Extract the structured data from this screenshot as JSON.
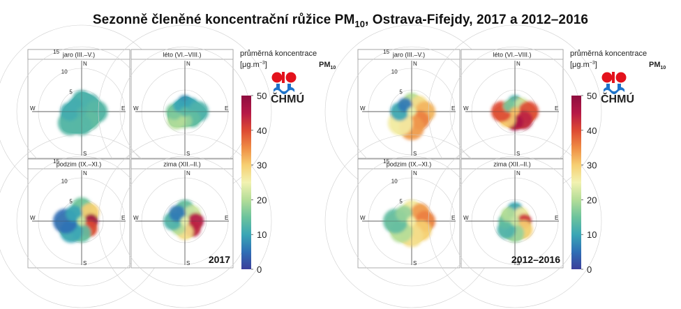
{
  "title": {
    "prefix": "Sezonně členěné koncentrační růžice PM",
    "sub": "10",
    "suffix": ", Ostrava-Fifejdy, 2017 a 2012–2016"
  },
  "legend": {
    "line1": "průměrná koncentrace",
    "unit_main": "[μg.m",
    "unit_sup": "−3",
    "unit_close": "]",
    "pm_label": "PM",
    "pm_sub": "10",
    "ticks": [
      "0",
      "10",
      "20",
      "30",
      "40",
      "50"
    ]
  },
  "logo": {
    "text": "ČHMÚ"
  },
  "colors": {
    "scale": [
      "#3b3e9a",
      "#2f6fb5",
      "#3aa6b5",
      "#6cc39c",
      "#b4dd98",
      "#f2f2b1",
      "#f6cf72",
      "#ef8c44",
      "#dd4a33",
      "#b51947",
      "#8e0d3f"
    ]
  },
  "chart_data": [
    {
      "type": "heatmap",
      "period": "2017",
      "panel_label": "2017",
      "scale": {
        "min": 0,
        "max": 50,
        "unit": "μg.m−3"
      },
      "radial_ticks": [
        "5",
        "10",
        "15"
      ],
      "compass": [
        "N",
        "E",
        "S",
        "W"
      ],
      "seasons": [
        {
          "name": "jaro",
          "months": "(III.–V.)",
          "dirs": [
            "N",
            "NE",
            "E",
            "SE",
            "S",
            "SW",
            "W",
            "NW"
          ],
          "extent": [
            4.5,
            4.5,
            5.5,
            4.5,
            5,
            6,
            4.5,
            3.5
          ],
          "value": [
            12,
            12,
            13,
            14,
            13,
            13,
            11,
            11
          ]
        },
        {
          "name": "léto",
          "months": "(VI.–VIII.)",
          "dirs": [
            "N",
            "NE",
            "E",
            "SE",
            "S",
            "SW",
            "W",
            "NW"
          ],
          "extent": [
            3.5,
            3.5,
            5,
            4,
            3.5,
            4.5,
            4,
            3
          ],
          "value": [
            8,
            10,
            12,
            14,
            18,
            20,
            16,
            10
          ]
        },
        {
          "name": "podzim",
          "months": "(IX.–XI.)",
          "dirs": [
            "N",
            "NE",
            "E",
            "SE",
            "S",
            "SW",
            "W",
            "NW"
          ],
          "extent": [
            5,
            4.5,
            3.5,
            4,
            4.5,
            5.5,
            6,
            4
          ],
          "value": [
            15,
            30,
            48,
            40,
            14,
            10,
            5,
            10
          ]
        },
        {
          "name": "zima",
          "months": "(XII.–II.)",
          "dirs": [
            "N",
            "NE",
            "E",
            "SE",
            "S",
            "SW",
            "W",
            "NW"
          ],
          "extent": [
            4.5,
            4,
            4,
            4,
            4,
            3.5,
            4.5,
            4
          ],
          "value": [
            14,
            22,
            45,
            44,
            28,
            20,
            12,
            6
          ]
        }
      ]
    },
    {
      "type": "heatmap",
      "period": "2012–2016",
      "panel_label": "2012–2016",
      "scale": {
        "min": 0,
        "max": 50,
        "unit": "μg.m−3"
      },
      "radial_ticks": [
        "5",
        "10",
        "15"
      ],
      "compass": [
        "N",
        "E",
        "S",
        "W"
      ],
      "seasons": [
        {
          "name": "jaro",
          "months": "(III.–V.)",
          "dirs": [
            "N",
            "NE",
            "E",
            "SE",
            "S",
            "SW",
            "W",
            "NW"
          ],
          "extent": [
            4,
            4,
            5,
            4.5,
            6,
            6,
            4.5,
            3.5
          ],
          "value": [
            20,
            28,
            32,
            36,
            34,
            26,
            10,
            6
          ]
        },
        {
          "name": "léto",
          "months": "(VI.–VIII.)",
          "dirs": [
            "N",
            "NE",
            "E",
            "SE",
            "S",
            "SW",
            "W",
            "NW"
          ],
          "extent": [
            3.5,
            3.5,
            5,
            4.5,
            4,
            4,
            5,
            3
          ],
          "value": [
            12,
            22,
            40,
            44,
            46,
            30,
            40,
            16
          ]
        },
        {
          "name": "podzim",
          "months": "(IX.–XI.)",
          "dirs": [
            "N",
            "NE",
            "E",
            "SE",
            "S",
            "SW",
            "W",
            "NW"
          ],
          "extent": [
            4.5,
            4.5,
            5,
            5,
            5.5,
            5.5,
            6,
            4
          ],
          "value": [
            26,
            34,
            36,
            30,
            28,
            20,
            14,
            18
          ]
        },
        {
          "name": "zima",
          "months": "(XII.–II.)",
          "dirs": [
            "N",
            "NE",
            "E",
            "SE",
            "S",
            "SW",
            "W",
            "NW"
          ],
          "extent": [
            4,
            3.5,
            3.5,
            4.5,
            4.5,
            4.5,
            3.5,
            3.5
          ],
          "value": [
            10,
            26,
            42,
            30,
            18,
            12,
            14,
            20
          ]
        }
      ]
    }
  ]
}
